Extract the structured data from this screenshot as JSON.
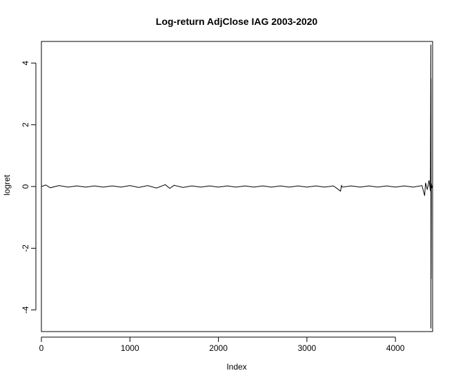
{
  "chart_data": {
    "type": "line",
    "title": "Log-return AdjClose IAG 2003-2020",
    "xlabel": "Index",
    "ylabel": "logret",
    "xlim": [
      0,
      4420
    ],
    "ylim": [
      -4.7,
      4.7
    ],
    "x_ticks": [
      0,
      1000,
      2000,
      3000,
      4000
    ],
    "x_tick_labels": [
      "0",
      "1000",
      "2000",
      "3000",
      "4000"
    ],
    "y_ticks": [
      -4,
      -2,
      0,
      2,
      4
    ],
    "y_tick_labels": [
      "-4",
      "-2",
      "0",
      "2",
      "4"
    ],
    "grid": false,
    "legend": "none",
    "line_color": "#000000",
    "series": [
      {
        "x": [
          1,
          50,
          100,
          200,
          300,
          400,
          500,
          600,
          700,
          800,
          900,
          1000,
          1100,
          1200,
          1300,
          1400,
          1450,
          1500,
          1600,
          1700,
          1800,
          1900,
          2000,
          2100,
          2200,
          2300,
          2400,
          2500,
          2600,
          2700,
          2800,
          2900,
          3000,
          3100,
          3200,
          3300,
          3380,
          3390,
          3400,
          3500,
          3600,
          3700,
          3800,
          3900,
          4000,
          4100,
          4200,
          4300,
          4330,
          4340,
          4360,
          4380,
          4395,
          4400,
          4401,
          4402,
          4403,
          4405,
          4410,
          4415
        ],
        "y": [
          0.0,
          0.05,
          -0.04,
          0.03,
          -0.02,
          0.02,
          -0.02,
          0.02,
          -0.02,
          0.02,
          -0.02,
          0.03,
          -0.03,
          0.03,
          -0.05,
          0.06,
          -0.06,
          0.04,
          -0.03,
          0.02,
          -0.02,
          0.02,
          -0.02,
          0.02,
          -0.02,
          0.02,
          -0.02,
          0.02,
          -0.02,
          0.02,
          -0.02,
          0.02,
          -0.02,
          0.02,
          -0.02,
          0.02,
          -0.15,
          0.03,
          -0.02,
          0.02,
          -0.02,
          0.02,
          -0.02,
          0.02,
          -0.02,
          0.02,
          -0.02,
          0.03,
          -0.3,
          0.12,
          -0.1,
          0.2,
          -0.15,
          4.6,
          -4.6,
          3.5,
          -3.0,
          0.1,
          -0.05,
          0.03
        ]
      }
    ]
  }
}
